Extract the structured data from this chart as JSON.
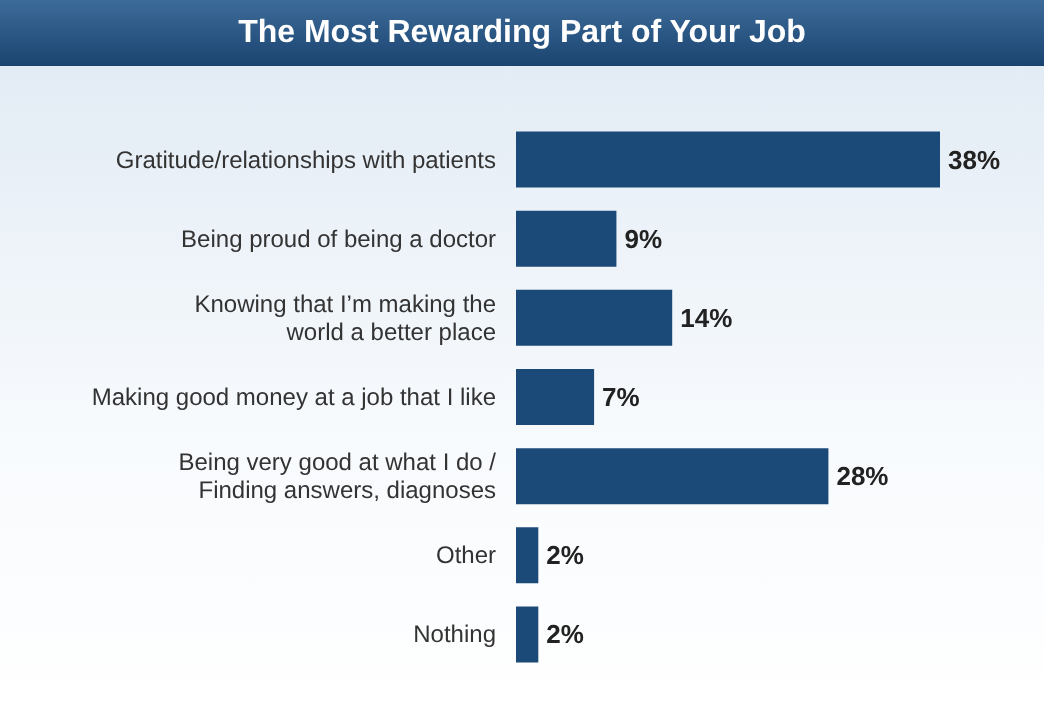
{
  "chart_data": {
    "type": "bar",
    "orientation": "horizontal",
    "title": "The Most Rewarding Part of Your Job",
    "categories": [
      "Gratitude/relationships with patients",
      "Being proud of being a doctor",
      "Knowing that I’m making the\nworld a better place",
      "Making good money at a job that I like",
      "Being very good at what I do /\nFinding answers, diagnoses",
      "Other",
      "Nothing"
    ],
    "values": [
      38,
      9,
      14,
      7,
      28,
      2,
      2
    ],
    "value_labels": [
      "38%",
      "9%",
      "14%",
      "7%",
      "28%",
      "2%",
      "2%"
    ],
    "color": "#1b4a78"
  }
}
